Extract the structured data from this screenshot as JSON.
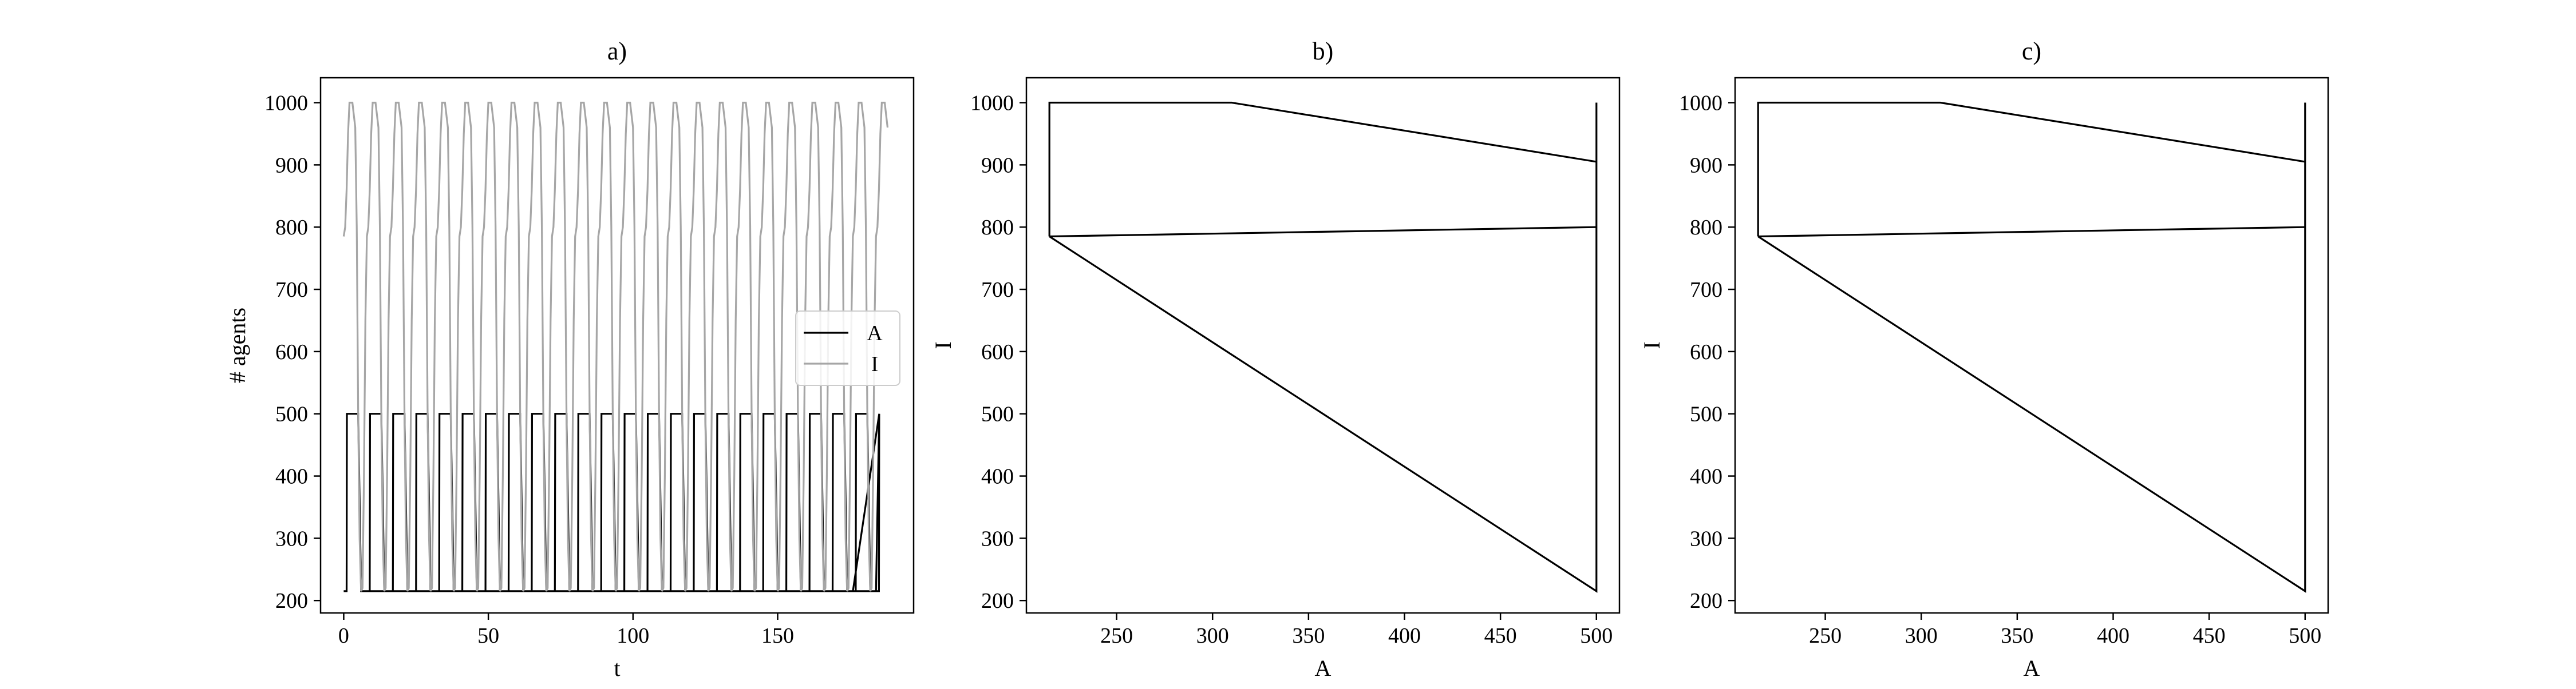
{
  "colors": {
    "A": "#000000",
    "I": "#a6a6a6",
    "frame": "#000000"
  },
  "chart_data": [
    {
      "type": "line",
      "title": "a)",
      "xlabel": "t",
      "ylabel": "# agents",
      "xlim": [
        -8,
        197
      ],
      "ylim": [
        180,
        1040
      ],
      "xticks": [
        0,
        50,
        100,
        150
      ],
      "yticks": [
        200,
        300,
        400,
        500,
        600,
        700,
        800,
        900,
        1000
      ],
      "legend": "center-right",
      "period": 8,
      "t_end": 188,
      "series": [
        {
          "name": "A",
          "x": [
            0,
            1,
            1.1,
            5,
            5.5,
            6,
            7,
            9,
            9.1,
            13,
            13.5,
            14,
            15,
            17,
            17.1,
            21,
            21.5,
            22,
            23
          ],
          "y": [
            215,
            215,
            500,
            500,
            360,
            215,
            215,
            215,
            500,
            500,
            360,
            215,
            215,
            215,
            500,
            500,
            360,
            215,
            215
          ]
        },
        {
          "name": "I",
          "x": [
            0,
            0.5,
            1,
            1.5,
            2,
            2.5,
            3,
            4,
            4.5,
            5,
            5.5,
            6,
            6.5,
            7,
            7.5,
            8
          ],
          "y": [
            785,
            800,
            860,
            950,
            1000,
            1000,
            1000,
            960,
            800,
            500,
            300,
            215,
            220,
            400,
            650,
            785
          ]
        }
      ]
    },
    {
      "type": "line",
      "title": "b)",
      "xlabel": "A",
      "ylabel": "I",
      "xlim": [
        203,
        512
      ],
      "ylim": [
        180,
        1040
      ],
      "xticks": [
        250,
        300,
        350,
        400,
        450,
        500
      ],
      "yticks": [
        200,
        300,
        400,
        500,
        600,
        700,
        800,
        900,
        1000
      ],
      "series": [
        {
          "name": "",
          "x": [
            215,
            215,
            310,
            500,
            500,
            500,
            215
          ],
          "y": [
            785,
            1000,
            1000,
            905,
            1000,
            215,
            785
          ]
        },
        {
          "name": "",
          "x": [
            215,
            500
          ],
          "y": [
            785,
            800
          ]
        }
      ]
    },
    {
      "type": "line",
      "title": "c)",
      "xlabel": "A",
      "ylabel": "I",
      "xlim": [
        203,
        512
      ],
      "ylim": [
        180,
        1040
      ],
      "xticks": [
        250,
        300,
        350,
        400,
        450,
        500
      ],
      "yticks": [
        200,
        300,
        400,
        500,
        600,
        700,
        800,
        900,
        1000
      ],
      "series": [
        {
          "name": "",
          "x": [
            215,
            215,
            310,
            500,
            500,
            500,
            215
          ],
          "y": [
            785,
            1000,
            1000,
            905,
            1000,
            215,
            785
          ]
        },
        {
          "name": "",
          "x": [
            215,
            500
          ],
          "y": [
            785,
            800
          ]
        }
      ]
    }
  ]
}
